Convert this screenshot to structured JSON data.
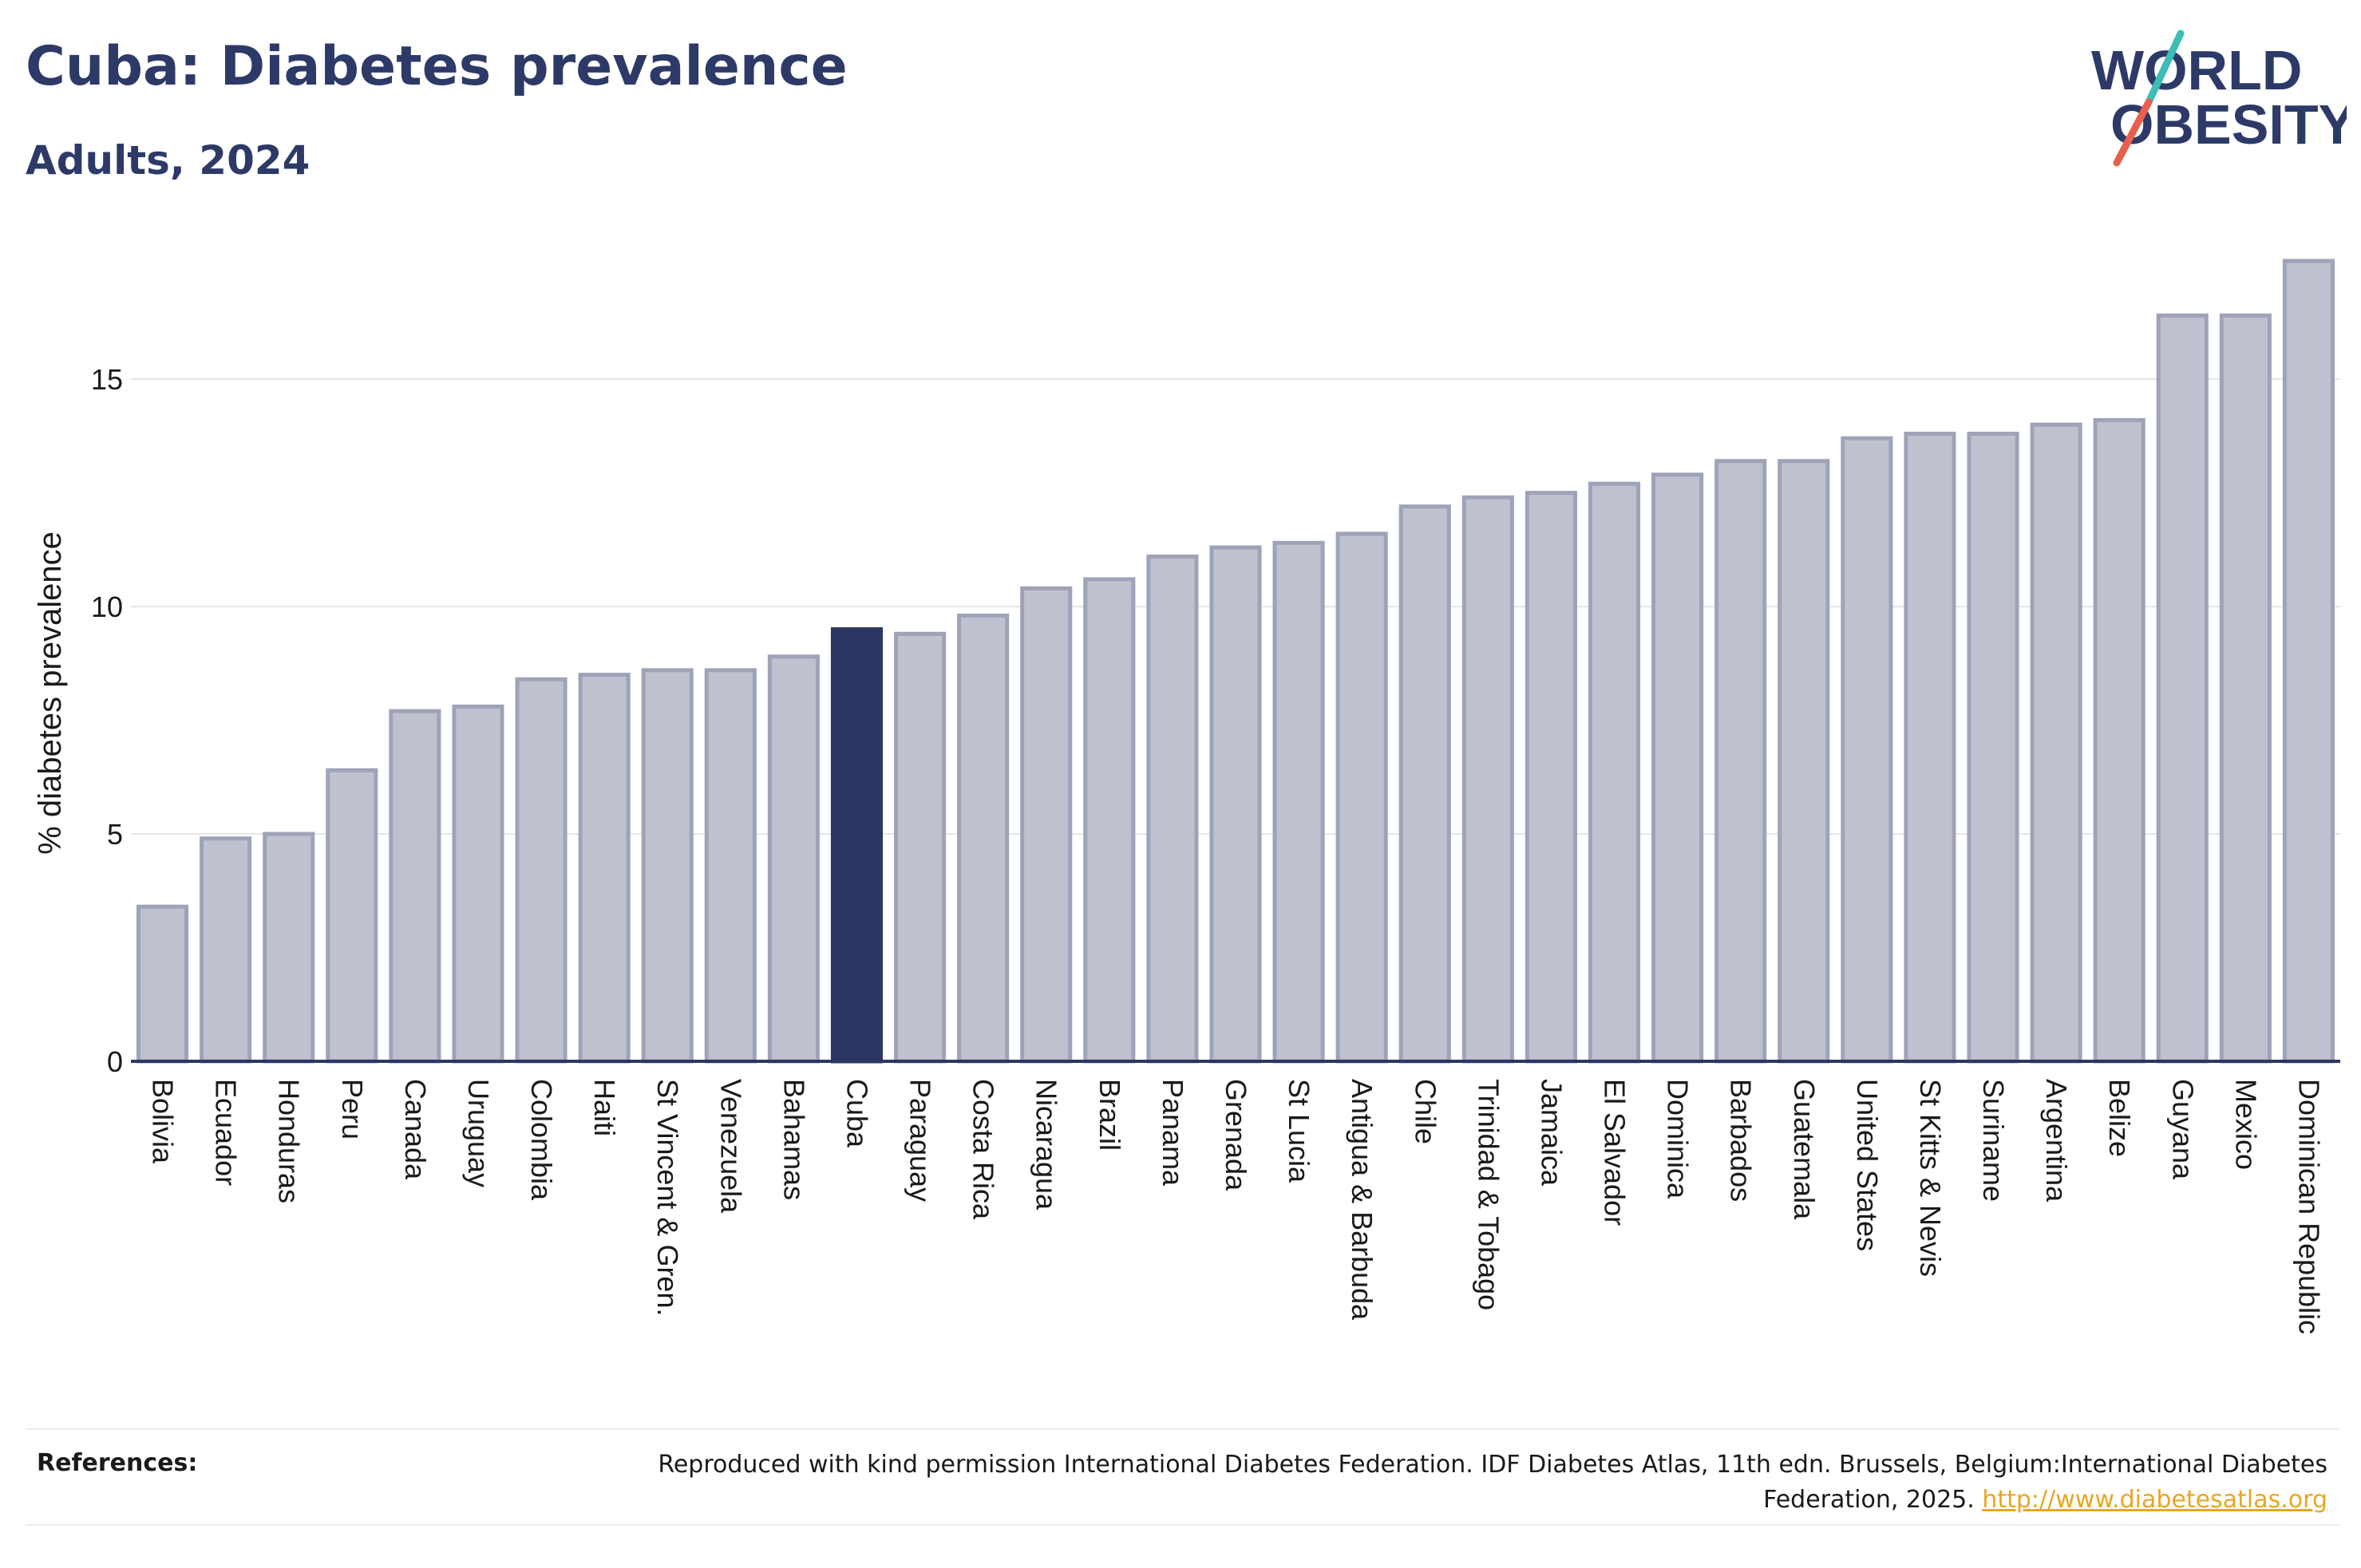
{
  "title": "Cuba: Diabetes prevalence",
  "subtitle": "Adults, 2024",
  "logo": {
    "line1": "WORLD",
    "line2": "OBESITY"
  },
  "references": {
    "label": "References:",
    "text": "Reproduced with kind permission International Diabetes Federation. IDF Diabetes Atlas, 11th edn. Brussels, Belgium:International Diabetes Federation, 2025.",
    "link": "http://www.diabetesatlas.org"
  },
  "colors": {
    "bar": "#bfc2ce",
    "bar_border": "#9ea3b9",
    "highlight": "#2b3662",
    "text": "#2d3a68",
    "link": "#e8a623",
    "logo_teal": "#3dbdb6",
    "logo_red": "#e8604c"
  },
  "chart_data": {
    "type": "bar",
    "title": "Cuba: Diabetes prevalence",
    "subtitle": "Adults, 2024",
    "xlabel": "",
    "ylabel": "% diabetes prevalence",
    "ylim": [
      0,
      17.6
    ],
    "yticks": [
      0,
      5,
      10,
      15
    ],
    "grid": true,
    "highlight": "Cuba",
    "categories": [
      "Bolivia",
      "Ecuador",
      "Honduras",
      "Peru",
      "Canada",
      "Uruguay",
      "Colombia",
      "Haiti",
      "St Vincent & Gren.",
      "Venezuela",
      "Bahamas",
      "Cuba",
      "Paraguay",
      "Costa Rica",
      "Nicaragua",
      "Brazil",
      "Panama",
      "Grenada",
      "St Lucia",
      "Antigua & Barbuda",
      "Chile",
      "Trinidad & Tobago",
      "Jamaica",
      "El Salvador",
      "Dominica",
      "Barbados",
      "Guatemala",
      "United States",
      "St Kitts & Nevis",
      "Suriname",
      "Argentina",
      "Belize",
      "Guyana",
      "Mexico",
      "Dominican Republic"
    ],
    "values": [
      3.4,
      4.9,
      5.0,
      6.4,
      7.7,
      7.8,
      8.4,
      8.5,
      8.6,
      8.6,
      8.9,
      9.5,
      9.4,
      9.8,
      10.4,
      10.6,
      11.1,
      11.3,
      11.4,
      11.6,
      12.2,
      12.4,
      12.5,
      12.7,
      12.9,
      13.2,
      13.2,
      13.7,
      13.8,
      13.8,
      14.0,
      14.1,
      16.4,
      16.4,
      17.6
    ]
  }
}
